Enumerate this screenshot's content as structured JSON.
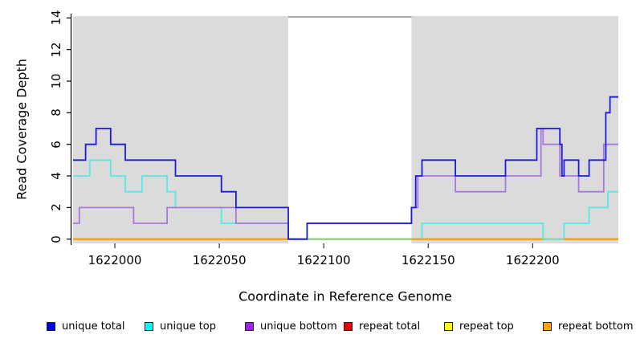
{
  "chart_data": {
    "type": "line",
    "subtype": "step-coverage",
    "title": "",
    "xlabel": "Coordinate in Reference Genome",
    "ylabel": "Read Coverage Depth",
    "xlim": [
      1621980,
      1622241
    ],
    "ylim": [
      0,
      14
    ],
    "x_ticks": [
      1622000,
      1622050,
      1622100,
      1622150,
      1622200
    ],
    "y_ticks": [
      0,
      2,
      4,
      6,
      8,
      10,
      12,
      14
    ],
    "grid": false,
    "legend_position": "bottom",
    "plot_background": "#ffffff",
    "shaded_regions": [
      {
        "from": 1621980,
        "to": 1622083,
        "color": "#dbdbdb"
      },
      {
        "from": 1622142,
        "to": 1622241,
        "color": "#dbdbdb"
      }
    ],
    "gap_region": {
      "from": 1622083,
      "to": 1622142,
      "top_border_color": "#8a8a8a"
    },
    "series": [
      {
        "name": "unique total",
        "color": "#1b1be0",
        "steps": [
          [
            1621980,
            5
          ],
          [
            1621986,
            6
          ],
          [
            1621991,
            7
          ],
          [
            1621998,
            6
          ],
          [
            1622005,
            5
          ],
          [
            1622029,
            4
          ],
          [
            1622051,
            3
          ],
          [
            1622058,
            2
          ],
          [
            1622083,
            0
          ],
          [
            1622092,
            1
          ],
          [
            1622142,
            2
          ],
          [
            1622144,
            4
          ],
          [
            1622147,
            5
          ],
          [
            1622163,
            4
          ],
          [
            1622187,
            5
          ],
          [
            1622202,
            7
          ],
          [
            1622213,
            6
          ],
          [
            1622214,
            4
          ],
          [
            1622215,
            5
          ],
          [
            1622222,
            4
          ],
          [
            1622227,
            5
          ],
          [
            1622235,
            8
          ],
          [
            1622237,
            9
          ]
        ]
      },
      {
        "name": "unique top",
        "color": "#58e8e8",
        "steps": [
          [
            1621980,
            4
          ],
          [
            1621988,
            5
          ],
          [
            1621998,
            4
          ],
          [
            1622005,
            3
          ],
          [
            1622013,
            4
          ],
          [
            1622025,
            3
          ],
          [
            1622029,
            2
          ],
          [
            1622051,
            1
          ],
          [
            1622083,
            0
          ],
          [
            1622147,
            1
          ],
          [
            1622205,
            0
          ],
          [
            1622215,
            1
          ],
          [
            1622227,
            2
          ],
          [
            1622236,
            3
          ]
        ]
      },
      {
        "name": "unique bottom",
        "color": "#a878df",
        "steps": [
          [
            1621980,
            1
          ],
          [
            1621983,
            2
          ],
          [
            1622009,
            1
          ],
          [
            1622025,
            2
          ],
          [
            1622058,
            1
          ],
          [
            1622083,
            0
          ],
          [
            1622092,
            1
          ],
          [
            1622142,
            2
          ],
          [
            1622145,
            4
          ],
          [
            1622163,
            3
          ],
          [
            1622187,
            4
          ],
          [
            1622204,
            7
          ],
          [
            1622205,
            6
          ],
          [
            1622213,
            4
          ],
          [
            1622222,
            3
          ],
          [
            1622234,
            6
          ]
        ]
      },
      {
        "name": "repeat total",
        "color": "#ee0000",
        "steps": [
          [
            1621980,
            0
          ]
        ]
      },
      {
        "name": "repeat top",
        "color": "#ffff00",
        "steps": [
          [
            1621980,
            0
          ]
        ]
      },
      {
        "name": "repeat bottom",
        "color": "#ff9e00",
        "steps": [
          [
            1621980,
            0
          ]
        ]
      }
    ],
    "zero_line_overlays": [
      {
        "from": 1621980,
        "to": 1622083,
        "color": "#ff9e00"
      },
      {
        "from": 1622092,
        "to": 1622142,
        "color": "#8fcf8f"
      },
      {
        "from": 1622142,
        "to": 1622205,
        "color": "#ff9e00"
      },
      {
        "from": 1622215,
        "to": 1622241,
        "color": "#ff9e00"
      }
    ],
    "legend": [
      {
        "label": "unique total",
        "color": "#0000ee"
      },
      {
        "label": "unique top",
        "color": "#00ffff"
      },
      {
        "label": "unique bottom",
        "color": "#a020f0"
      },
      {
        "label": "repeat total",
        "color": "#ee0000"
      },
      {
        "label": "repeat top",
        "color": "#ffff00"
      },
      {
        "label": "repeat bottom",
        "color": "#ffa500"
      }
    ]
  }
}
